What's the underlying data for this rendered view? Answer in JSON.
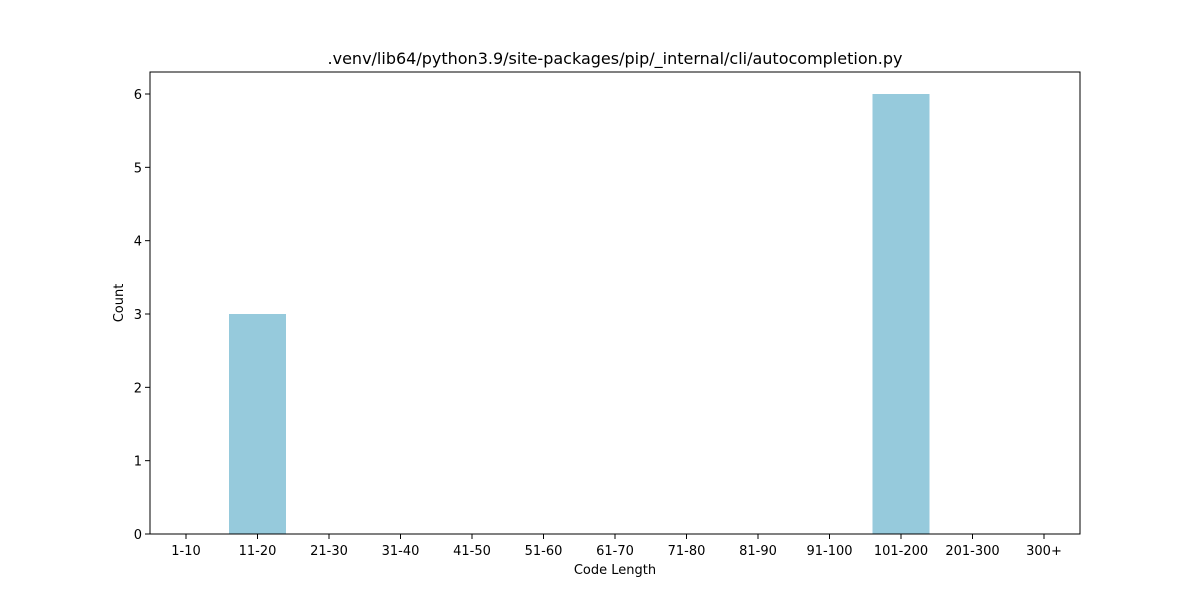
{
  "chart_data": {
    "type": "bar",
    "title": ".venv/lib64/python3.9/site-packages/pip/_internal/cli/autocompletion.py",
    "xlabel": "Code Length",
    "ylabel": "Count",
    "categories": [
      "1-10",
      "11-20",
      "21-30",
      "31-40",
      "41-50",
      "51-60",
      "61-70",
      "71-80",
      "81-90",
      "91-100",
      "101-200",
      "201-300",
      "300+"
    ],
    "values": [
      0,
      3,
      0,
      0,
      0,
      0,
      0,
      0,
      0,
      0,
      6,
      0,
      0
    ],
    "ylim": [
      0,
      6.3
    ],
    "yticks": [
      0,
      1,
      2,
      3,
      4,
      5,
      6
    ],
    "grid": false,
    "bar_color": "#96cadc",
    "axis_color": "#000000"
  }
}
